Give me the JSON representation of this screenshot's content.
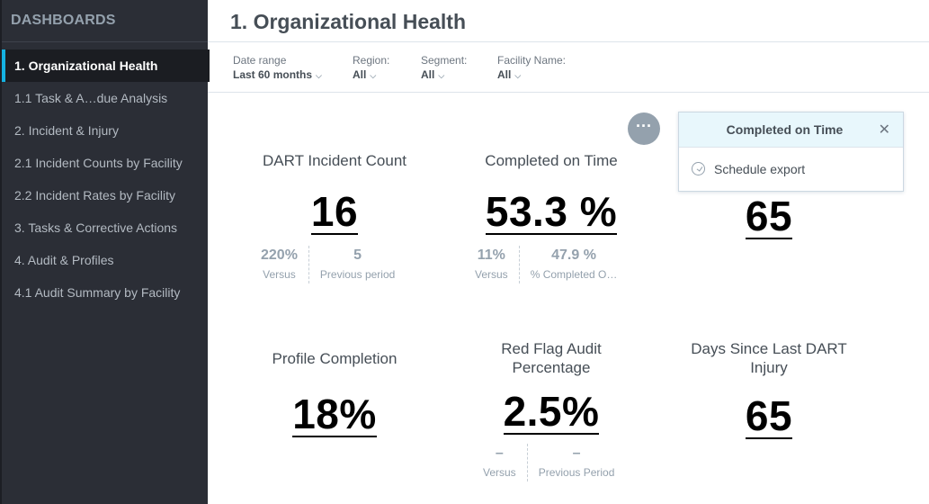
{
  "sidebar": {
    "title": "DASHBOARDS",
    "items": [
      {
        "label": "1. Organizational Health"
      },
      {
        "label": "1.1 Task & A…due Analysis"
      },
      {
        "label": "2. Incident & Injury"
      },
      {
        "label": "2.1 Incident Counts by Facility"
      },
      {
        "label": "2.2 Incident Rates by Facility"
      },
      {
        "label": "3. Tasks & Corrective Actions"
      },
      {
        "label": "4. Audit & Profiles"
      },
      {
        "label": "4.1 Audit Summary by Facility"
      }
    ],
    "active_index": 0
  },
  "header": {
    "title": "1. Organizational Health"
  },
  "filters": {
    "date_range": {
      "label": "Date range",
      "value": "Last 60 months"
    },
    "region": {
      "label": "Region:",
      "value": "All"
    },
    "segment": {
      "label": "Segment:",
      "value": "All"
    },
    "facility": {
      "label": "Facility Name:",
      "value": "All"
    }
  },
  "kpis": {
    "dart": {
      "title": "DART Incident Count",
      "value": "16",
      "compare": [
        {
          "value": "220%",
          "label": "Versus"
        },
        {
          "value": "5",
          "label": "Previous period"
        }
      ]
    },
    "completed": {
      "title": "Completed on Time",
      "value": "53.3 %",
      "compare": [
        {
          "value": "11%",
          "label": "Versus"
        },
        {
          "value": "47.9 %",
          "label": "% Completed O…"
        }
      ]
    },
    "hidden_kpi": {
      "value": "65"
    },
    "profile": {
      "title": "Profile Completion",
      "value": "18%"
    },
    "redflag": {
      "title_line1": "Red Flag Audit",
      "title_line2": "Percentage",
      "value": "2.5%",
      "compare": [
        {
          "value": "–",
          "label": "Versus"
        },
        {
          "value": "–",
          "label": "Previous Period"
        }
      ]
    },
    "days": {
      "title_line1": "Days Since Last DART",
      "title_line2": "Injury",
      "value": "65"
    }
  },
  "popup": {
    "title": "Completed on Time",
    "item": "Schedule export",
    "more_glyph": "···",
    "close_glyph": "✕"
  },
  "colors": {
    "accent": "#14b2e2",
    "sidebar_bg": "#2b2e36"
  },
  "icons": {
    "chevron": "chevron-down-icon",
    "close": "close-icon",
    "clock": "clock-icon",
    "more": "more-options-icon"
  }
}
